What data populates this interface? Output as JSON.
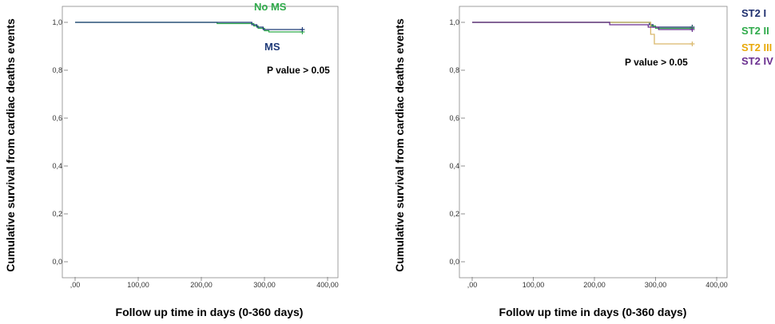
{
  "chart_data": [
    {
      "type": "line",
      "subtype": "kaplan-meier",
      "xlabel": "Follow up time in days (0-360 days)",
      "ylabel": "Cumulative survival from cardiac deaths events",
      "xlim": [
        0,
        400
      ],
      "ylim": [
        0,
        1
      ],
      "x_ticks": [
        ",00",
        "100,00",
        "200,00",
        "300,00",
        "400,00"
      ],
      "y_ticks": [
        "0,0",
        "0,2",
        "0,4",
        "0,6",
        "0,8",
        "1,0"
      ],
      "annotation": "P value > 0.05",
      "grid": false,
      "series": [
        {
          "name": "No MS",
          "color": "#2eaa4a",
          "label_color": "#2eaa4a",
          "points": [
            [
              0,
              1.0
            ],
            [
              225,
              1.0
            ],
            [
              225,
              0.995
            ],
            [
              283,
              0.995
            ],
            [
              283,
              0.985
            ],
            [
              290,
              0.985
            ],
            [
              290,
              0.975
            ],
            [
              300,
              0.975
            ],
            [
              300,
              0.965
            ],
            [
              307,
              0.965
            ],
            [
              307,
              0.96
            ],
            [
              360,
              0.96
            ]
          ]
        },
        {
          "name": "MS",
          "color": "#1f3a78",
          "label_color": "#1f3a78",
          "points": [
            [
              0,
              1.0
            ],
            [
              280,
              1.0
            ],
            [
              280,
              0.99
            ],
            [
              288,
              0.99
            ],
            [
              288,
              0.98
            ],
            [
              298,
              0.98
            ],
            [
              298,
              0.97
            ],
            [
              360,
              0.97
            ]
          ]
        }
      ]
    },
    {
      "type": "line",
      "subtype": "kaplan-meier",
      "xlabel": "Follow up time in days (0-360 days)",
      "ylabel": "Cumulative survival from cardiac deaths events",
      "xlim": [
        0,
        400
      ],
      "ylim": [
        0,
        1
      ],
      "x_ticks": [
        ",00",
        "100,00",
        "200,00",
        "300,00",
        "400,00"
      ],
      "y_ticks": [
        "0,0",
        "0,2",
        "0,4",
        "0,6",
        "0,8",
        "1,0"
      ],
      "annotation": "P value > 0.05",
      "grid": false,
      "series": [
        {
          "name": "ST2 I",
          "color": "#1f2f6e",
          "label_color": "#1f2f6e",
          "points": [
            [
              0,
              1.0
            ],
            [
              290,
              1.0
            ],
            [
              290,
              0.99
            ],
            [
              296,
              0.99
            ],
            [
              296,
              0.98
            ],
            [
              360,
              0.98
            ]
          ]
        },
        {
          "name": "ST2 II",
          "color": "#2eaa4a",
          "label_color": "#2eaa4a",
          "points": [
            [
              0,
              1.0
            ],
            [
              292,
              1.0
            ],
            [
              292,
              0.985
            ],
            [
              300,
              0.985
            ],
            [
              300,
              0.975
            ],
            [
              360,
              0.975
            ]
          ]
        },
        {
          "name": "ST2 III",
          "color": "#d9b86a",
          "label_color": "#e8a90a",
          "points": [
            [
              0,
              1.0
            ],
            [
              292,
              1.0
            ],
            [
              292,
              0.95
            ],
            [
              298,
              0.95
            ],
            [
              298,
              0.91
            ],
            [
              360,
              0.91
            ]
          ]
        },
        {
          "name": "ST2 IV",
          "color": "#6a2f8f",
          "label_color": "#6a2f8f",
          "points": [
            [
              0,
              1.0
            ],
            [
              225,
              1.0
            ],
            [
              225,
              0.99
            ],
            [
              288,
              0.99
            ],
            [
              288,
              0.98
            ],
            [
              305,
              0.98
            ],
            [
              305,
              0.97
            ],
            [
              360,
              0.97
            ]
          ]
        }
      ]
    }
  ]
}
